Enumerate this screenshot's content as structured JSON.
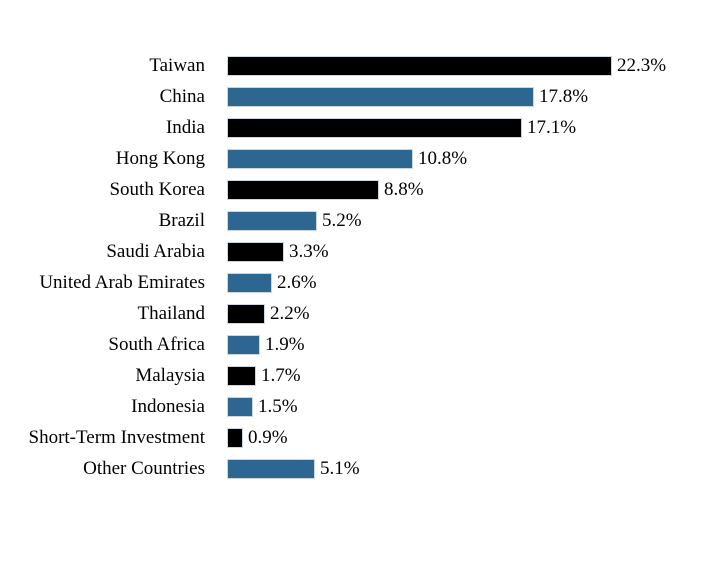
{
  "chart_data": {
    "type": "bar",
    "orientation": "horizontal",
    "title": "",
    "xlabel": "",
    "ylabel": "",
    "legend": "none",
    "grid": false,
    "xlim": [
      0,
      22.3
    ],
    "categories": [
      "Taiwan",
      "China",
      "India",
      "Hong Kong",
      "South Korea",
      "Brazil",
      "Saudi Arabia",
      "United Arab Emirates",
      "Thailand",
      "South Africa",
      "Malaysia",
      "Indonesia",
      "Short-Term Investment",
      "Other Countries"
    ],
    "values": [
      22.3,
      17.8,
      17.1,
      10.8,
      8.8,
      5.2,
      3.3,
      2.6,
      2.2,
      1.9,
      1.7,
      1.5,
      0.9,
      5.1
    ],
    "value_labels": [
      "22.3%",
      "17.8%",
      "17.1%",
      "10.8%",
      "8.8%",
      "5.2%",
      "3.3%",
      "2.6%",
      "2.2%",
      "1.9%",
      "1.7%",
      "1.5%",
      "0.9%",
      "5.1%"
    ],
    "bar_colors": [
      "#000000",
      "#2d6690",
      "#000000",
      "#2d6690",
      "#000000",
      "#2d6690",
      "#000000",
      "#2d6690",
      "#000000",
      "#2d6690",
      "#000000",
      "#2d6690",
      "#000000",
      "#2d6690"
    ]
  },
  "colors": {
    "background": "#ffffff",
    "bar_black": "#000000",
    "bar_blue": "#2d6690",
    "bar_border": "#ccd6e0",
    "text": "#000000"
  }
}
